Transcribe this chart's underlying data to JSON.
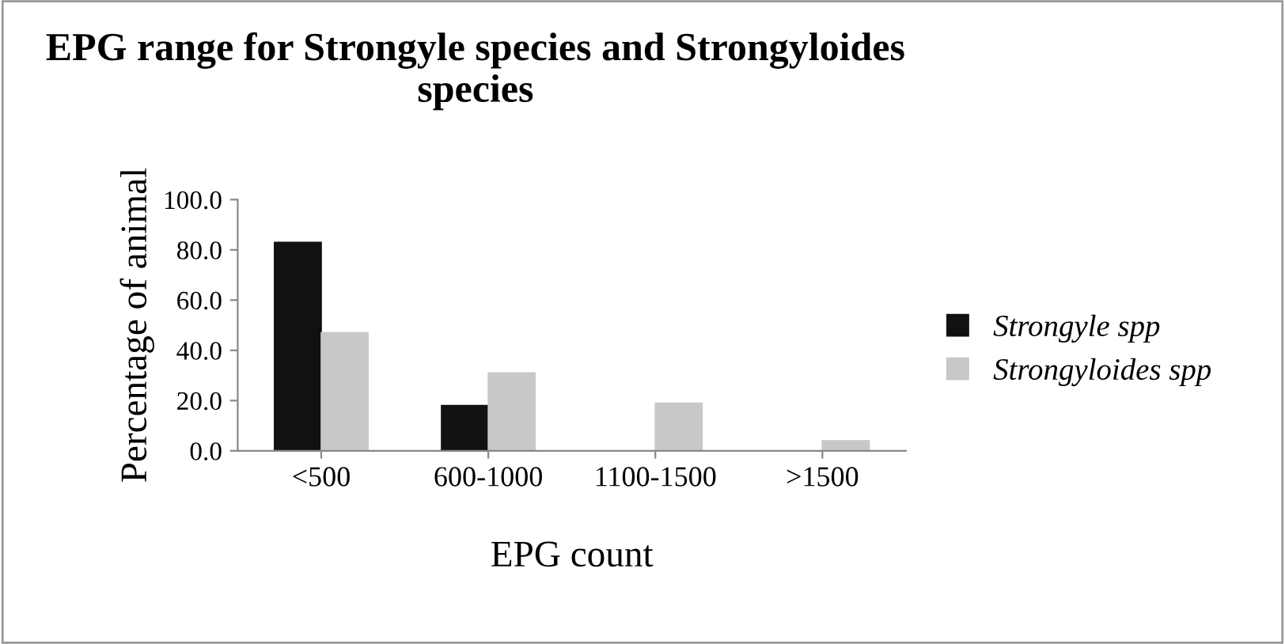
{
  "chart_data": {
    "type": "bar",
    "title": "EPG range for Strongyle species and Strongyloides species",
    "xlabel": "EPG count",
    "ylabel": "Percentage of animal",
    "categories": [
      "<500",
      "600-1000",
      "1100-1500",
      ">1500"
    ],
    "series": [
      {
        "name": "Strongyle spp",
        "color": "#111111",
        "values": [
          83,
          18,
          null,
          null
        ]
      },
      {
        "name": "Strongyloides spp",
        "color": "#c8c8c8",
        "values": [
          47,
          31,
          19,
          4
        ]
      }
    ],
    "ylim": [
      0,
      100
    ],
    "yticks": [
      {
        "value": 0,
        "label": "0.0"
      },
      {
        "value": 20,
        "label": "20.0"
      },
      {
        "value": 40,
        "label": "40.0"
      },
      {
        "value": 60,
        "label": "60.0"
      },
      {
        "value": 80,
        "label": "80.0"
      },
      {
        "value": 100,
        "label": "100.0"
      }
    ],
    "grid": false,
    "legend": "right"
  }
}
